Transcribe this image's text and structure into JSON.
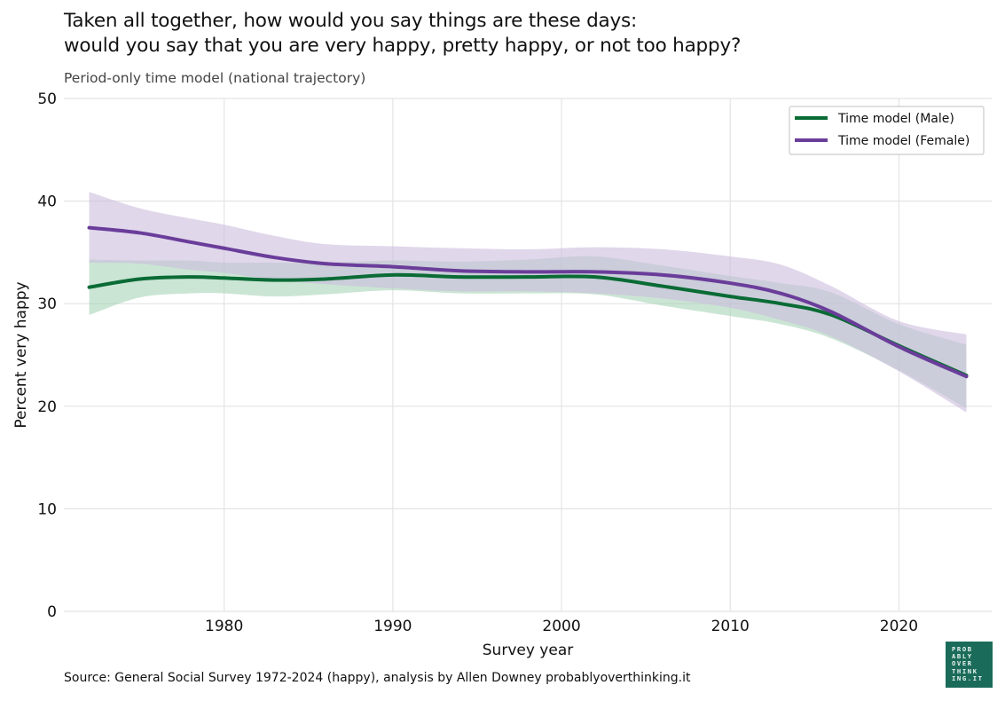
{
  "title_line1": "Taken all together, how would you say things are these days:",
  "title_line2": "would you say that you are very happy, pretty happy, or not too happy?",
  "subtitle": "Period-only time model (national trajectory)",
  "source": "Source: General Social Survey 1972-2024 (happy), analysis by Allen Downey probablyoverthinking.it",
  "logo": {
    "line1": "PROB",
    "line2": "ABLY",
    "line3": "OVER",
    "line4": "THINK",
    "line5": "ING.IT"
  },
  "chart_data": {
    "type": "line",
    "xlabel": "Survey year",
    "ylabel": "Percent very happy",
    "xlim": [
      1970.5,
      2025.5
    ],
    "ylim": [
      0,
      50
    ],
    "xticks": [
      1980,
      1990,
      2000,
      2010,
      2020
    ],
    "yticks": [
      0,
      10,
      20,
      30,
      40,
      50
    ],
    "grid": true,
    "legend_position": "top-right",
    "x": [
      1972,
      1975,
      1978,
      1980,
      1983,
      1986,
      1990,
      1994,
      1998,
      2002,
      2006,
      2010,
      2013,
      2016,
      2020,
      2024
    ],
    "series": [
      {
        "name": "Time model (Male)",
        "color": "#0a6b35",
        "band_color": "#a8d3b8",
        "values": [
          31.6,
          32.4,
          32.6,
          32.5,
          32.3,
          32.4,
          32.8,
          32.6,
          32.6,
          32.6,
          31.7,
          30.7,
          30.0,
          28.9,
          25.9,
          23.0
        ],
        "lower": [
          28.9,
          30.6,
          31.0,
          31.0,
          30.7,
          30.9,
          31.3,
          31.0,
          31.0,
          30.9,
          29.8,
          28.8,
          28.0,
          26.6,
          23.5,
          19.8
        ],
        "upper": [
          34.3,
          34.2,
          34.2,
          34.0,
          34.0,
          34.0,
          34.2,
          34.1,
          34.3,
          34.6,
          33.7,
          32.7,
          32.0,
          31.1,
          28.0,
          26.0
        ]
      },
      {
        "name": "Time model (Female)",
        "color": "#6a3d9a",
        "band_color": "#cbbcdd",
        "values": [
          37.4,
          36.9,
          36.0,
          35.4,
          34.5,
          33.9,
          33.6,
          33.2,
          33.1,
          33.1,
          32.8,
          32.0,
          31.0,
          29.2,
          25.8,
          22.9
        ],
        "lower": [
          34.0,
          33.9,
          33.3,
          33.0,
          32.3,
          31.9,
          31.5,
          31.2,
          31.2,
          31.0,
          30.5,
          29.6,
          28.4,
          26.8,
          23.4,
          19.4
        ],
        "upper": [
          40.9,
          39.3,
          38.3,
          37.7,
          36.6,
          35.8,
          35.6,
          35.4,
          35.3,
          35.5,
          35.3,
          34.6,
          33.8,
          31.7,
          28.3,
          27.0
        ]
      }
    ]
  }
}
